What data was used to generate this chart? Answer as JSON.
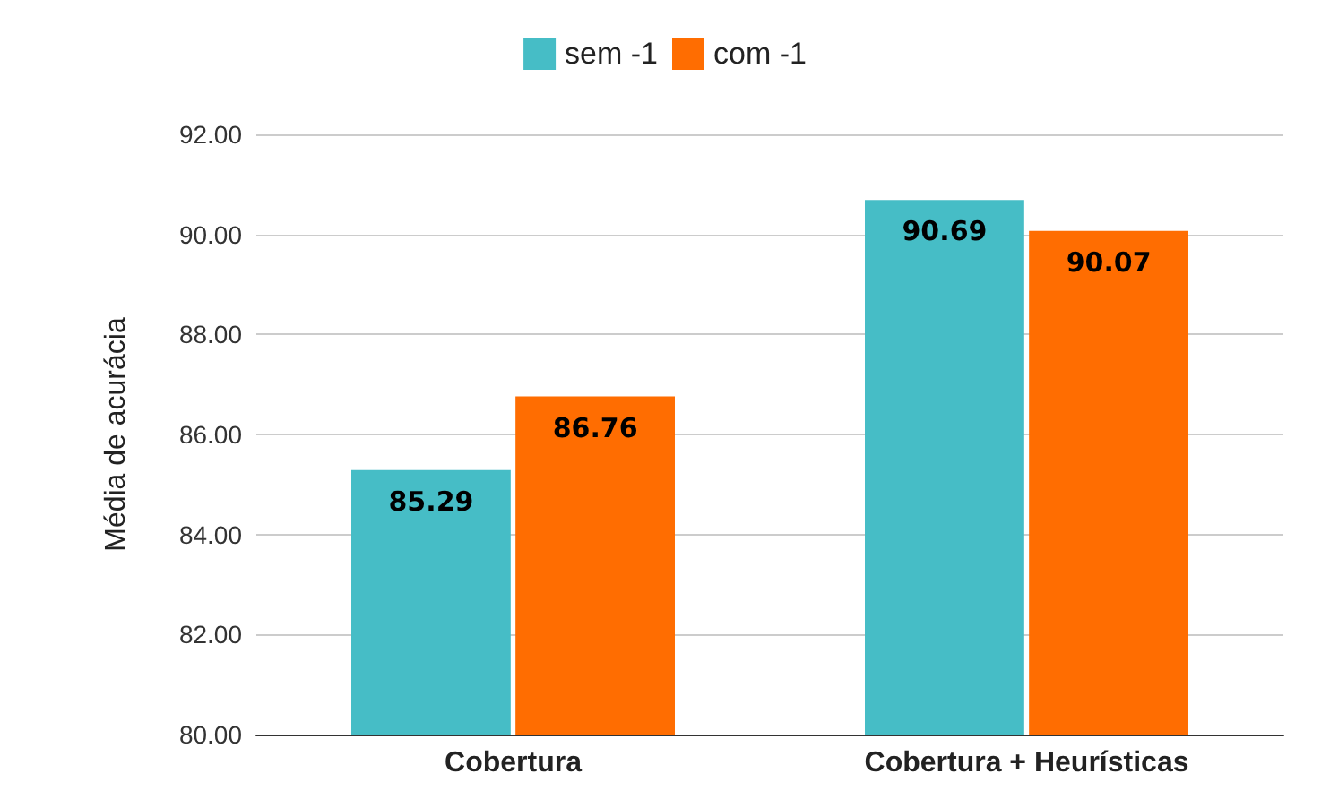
{
  "chart_data": {
    "type": "bar",
    "ylabel": "Média de acurácia",
    "categories": [
      "Cobertura",
      "Cobertura + Heurísticas"
    ],
    "series": [
      {
        "name": "sem -1",
        "color": "#46bdc6",
        "values": [
          85.29,
          90.69
        ]
      },
      {
        "name": "com -1",
        "color": "#ff6d01",
        "values": [
          86.76,
          90.07
        ]
      }
    ],
    "ylim": [
      80,
      92
    ],
    "yticks": [
      {
        "value": 80,
        "label": "80.00"
      },
      {
        "value": 82,
        "label": "82.00"
      },
      {
        "value": 84,
        "label": "84.00"
      },
      {
        "value": 86,
        "label": "86.00"
      },
      {
        "value": 88,
        "label": "88.00"
      },
      {
        "value": 90,
        "label": "90.00"
      },
      {
        "value": 92,
        "label": "92.00"
      }
    ],
    "grid": "y",
    "legend": "top",
    "data_labels": true
  }
}
